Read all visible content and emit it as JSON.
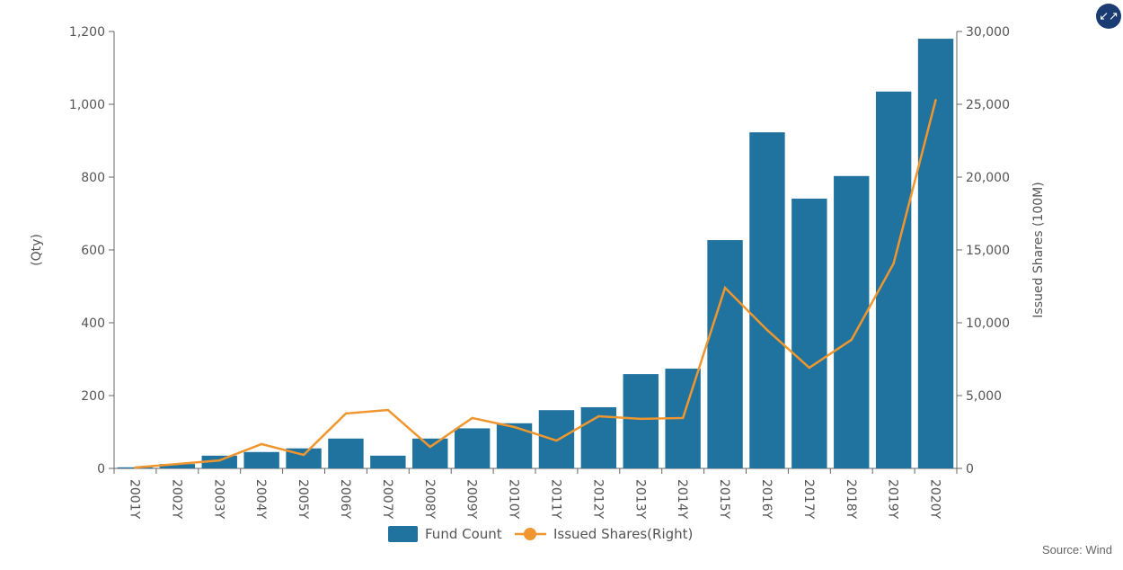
{
  "chart_data": {
    "type": "bar+line",
    "categories": [
      "2001Y",
      "2002Y",
      "2003Y",
      "2004Y",
      "2005Y",
      "2006Y",
      "2007Y",
      "2008Y",
      "2009Y",
      "2010Y",
      "2011Y",
      "2012Y",
      "2013Y",
      "2014Y",
      "2015Y",
      "2016Y",
      "2017Y",
      "2018Y",
      "2019Y",
      "2020Y"
    ],
    "series": [
      {
        "name": "Fund Count",
        "type": "bar",
        "axis": "left",
        "color": "#20739f",
        "values": [
          3,
          12,
          35,
          45,
          55,
          82,
          35,
          82,
          110,
          124,
          160,
          168,
          259,
          274,
          627,
          923,
          741,
          803,
          1035,
          1180
        ]
      },
      {
        "name": "Issued Shares(Right)",
        "type": "line",
        "axis": "right",
        "color": "#f0962e",
        "values": [
          60,
          300,
          550,
          1670,
          930,
          3770,
          4010,
          1480,
          3460,
          2840,
          1910,
          3580,
          3400,
          3460,
          12400,
          9500,
          6910,
          8830,
          14070,
          25300
        ]
      }
    ],
    "ylabel": "(Qty)",
    "y2label": "Issued Shares (100M)",
    "ylim": [
      0,
      1200
    ],
    "y2lim": [
      0,
      30000
    ],
    "yticks": [
      "0",
      "200",
      "400",
      "600",
      "800",
      "1,000",
      "1,200"
    ],
    "y2ticks": [
      "0",
      "5,000",
      "10,000",
      "15,000",
      "20,000",
      "25,000",
      "30,000"
    ],
    "legend_position": "bottom",
    "grid": false
  },
  "source": "Source: Wind",
  "collapse_icon": "collapse-icon"
}
